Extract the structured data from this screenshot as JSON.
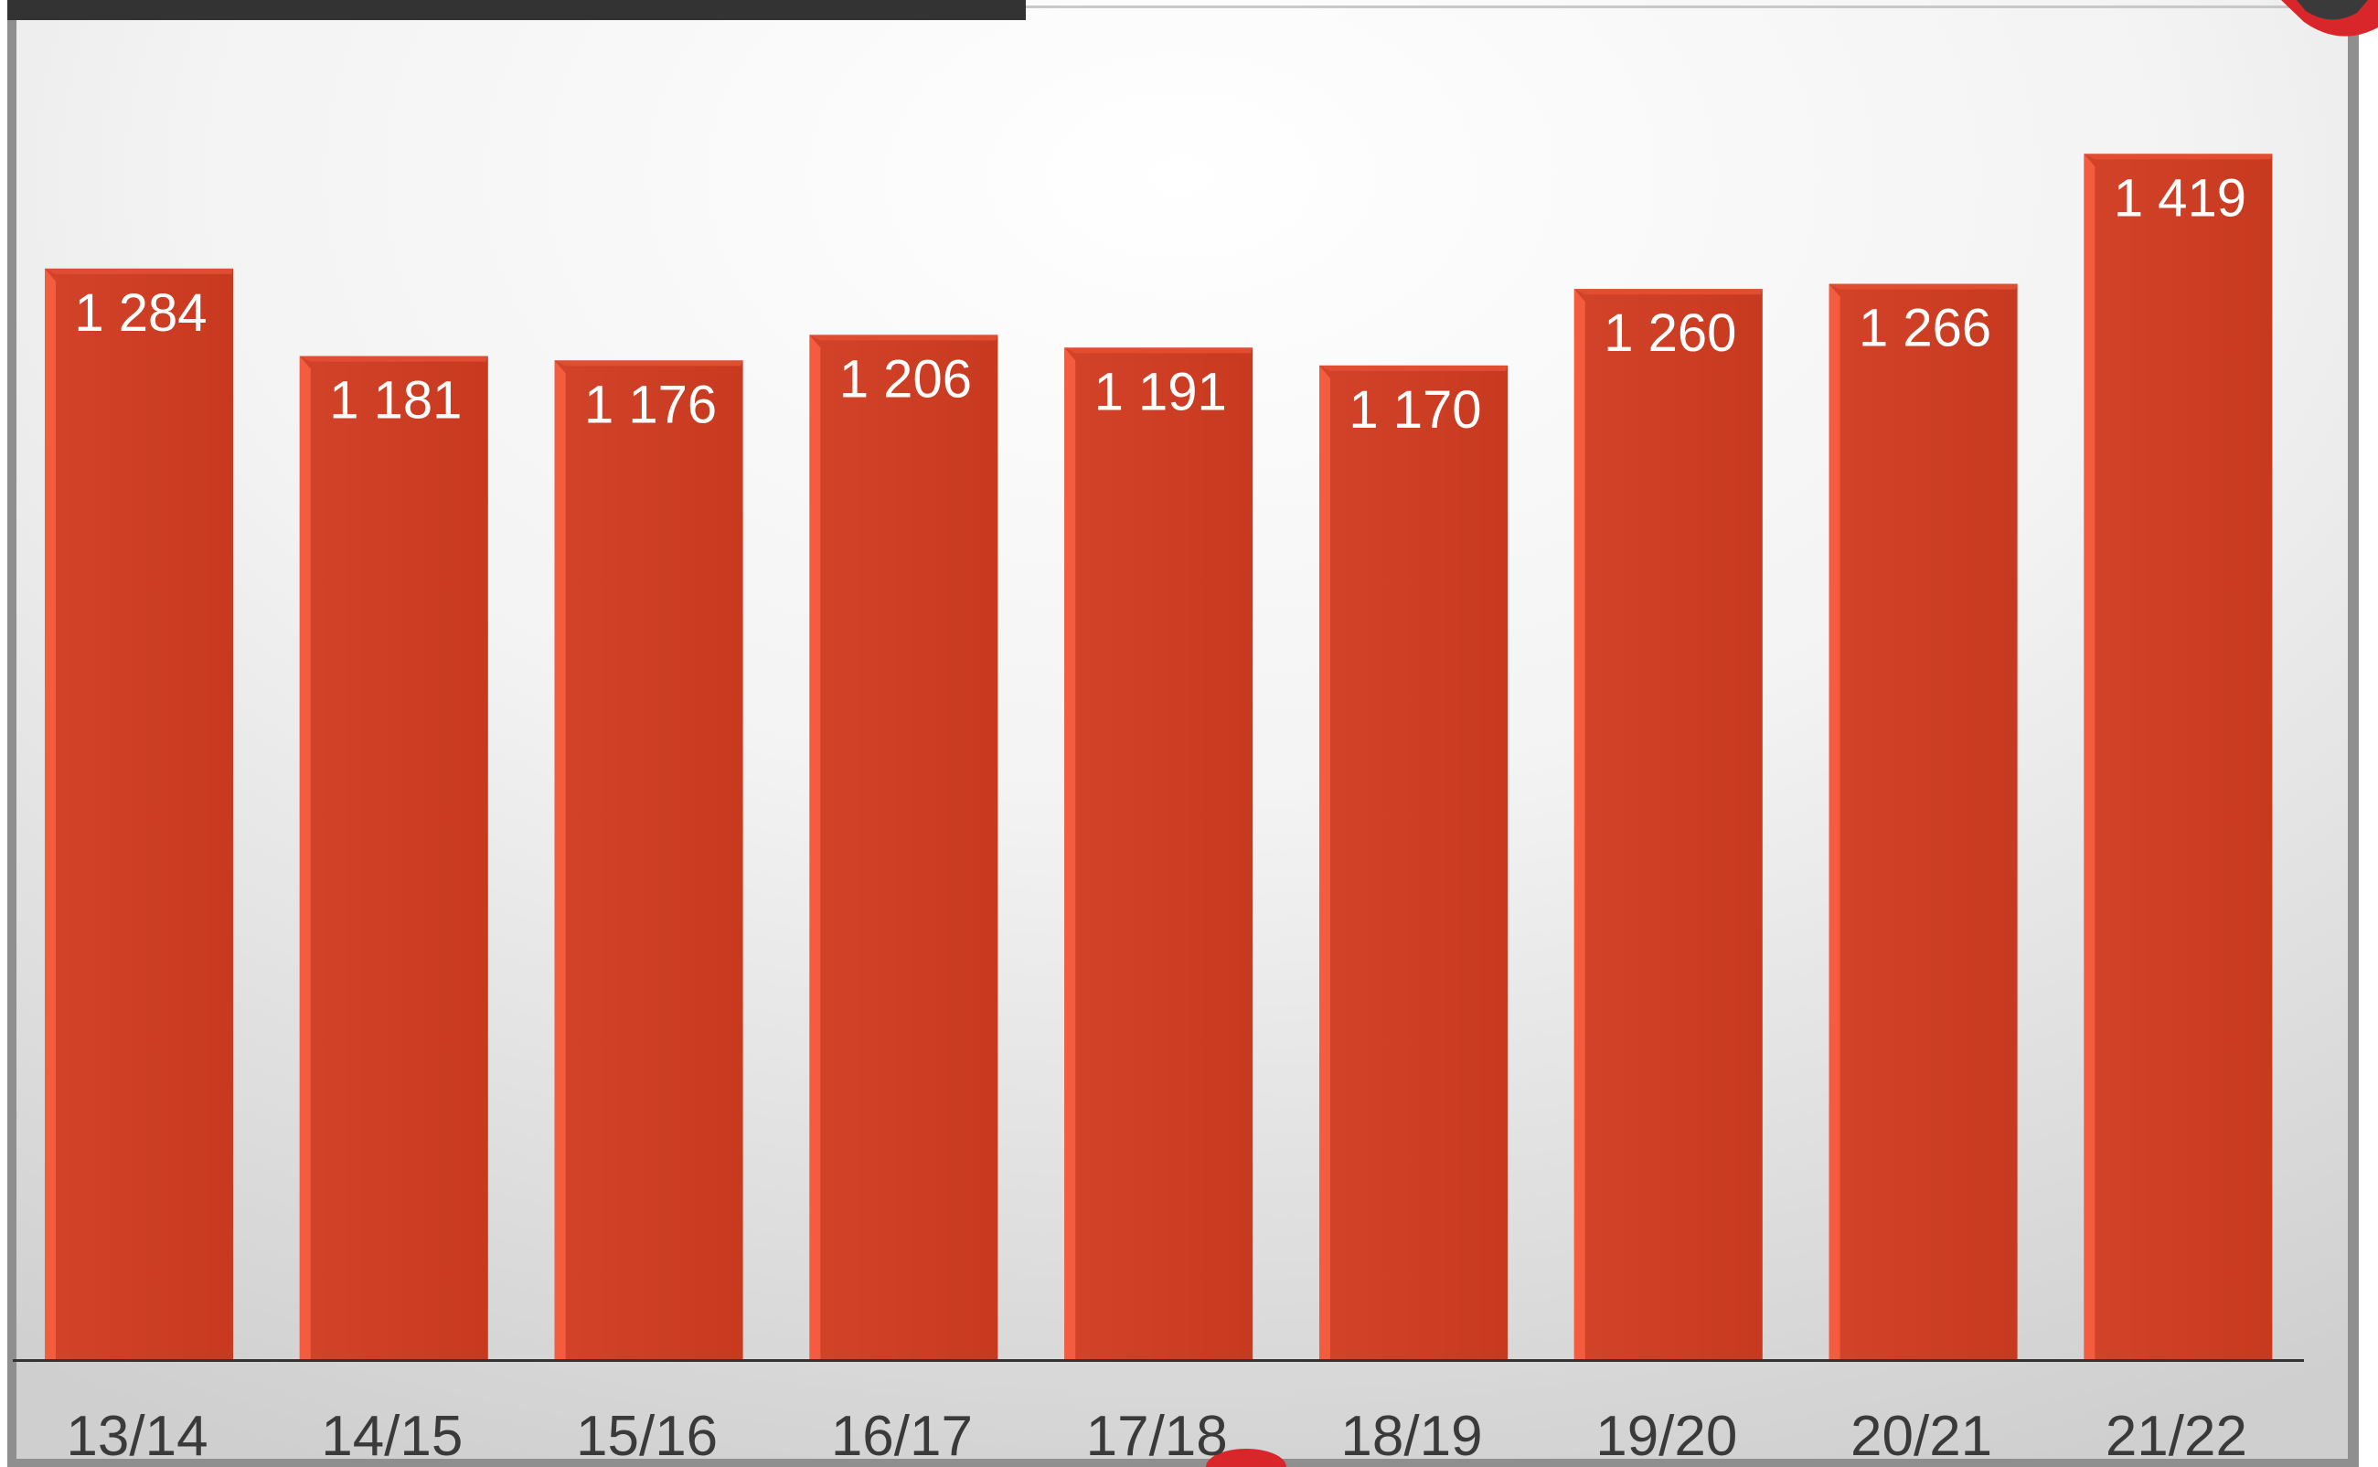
{
  "chart_data": {
    "type": "bar",
    "categories": [
      "13/14",
      "14/15",
      "15/16",
      "16/17",
      "17/18",
      "18/19",
      "19/20",
      "20/21",
      "21/22"
    ],
    "values": [
      1284,
      1181,
      1176,
      1206,
      1191,
      1170,
      1260,
      1266,
      1419
    ],
    "value_labels": [
      "1 284",
      "1 181",
      "1 176",
      "1 206",
      "1 191",
      "1 170",
      "1 260",
      "1 266",
      "1 419"
    ],
    "title": "",
    "xlabel": "",
    "ylabel": "",
    "ylim": [
      0,
      1520
    ],
    "grid": false,
    "legend": "none",
    "colors": {
      "bar": "#CE3F22",
      "bar_highlight": "#F45C3F",
      "bar_label": "#FFFFFF",
      "tick_label": "#3A3A3A",
      "baseline": "#333333",
      "accent": "#D9262B"
    }
  }
}
